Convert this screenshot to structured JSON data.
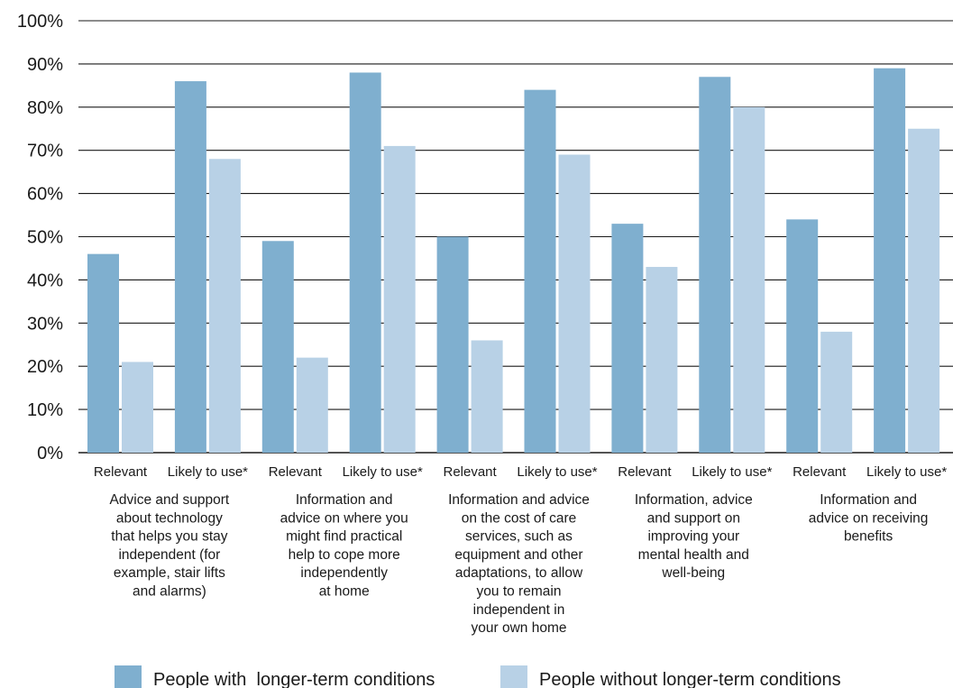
{
  "chart_data": {
    "type": "bar",
    "ylim": [
      0,
      100
    ],
    "yticks": [
      "0%",
      "10%",
      "20%",
      "30%",
      "40%",
      "50%",
      "60%",
      "70%",
      "80%",
      "90%",
      "100%"
    ],
    "grid": true,
    "legend_position": "bottom",
    "groups": [
      {
        "label": [
          "Advice and support",
          "about technology",
          "that helps you stay",
          "independent (for",
          "example, stair lifts",
          "and alarms)"
        ],
        "subcategories": [
          "Relevant",
          "Likely to use*"
        ]
      },
      {
        "label": [
          "Information and",
          "advice on where you",
          "might find practical",
          "help to cope more",
          "independently",
          "at home"
        ],
        "subcategories": [
          "Relevant",
          "Likely to use*"
        ]
      },
      {
        "label": [
          "Information and advice",
          "on the cost of care",
          "services, such as",
          "equipment and other",
          "adaptations, to allow",
          "you to remain",
          "independent in",
          "your own home"
        ],
        "subcategories": [
          "Relevant",
          "Likely to use*"
        ]
      },
      {
        "label": [
          "Information, advice",
          "and support on",
          "improving your",
          "mental health and",
          "well-being"
        ],
        "subcategories": [
          "Relevant",
          "Likely to use*"
        ]
      },
      {
        "label": [
          "Information and",
          "advice on receiving",
          "benefits"
        ],
        "subcategories": [
          "Relevant",
          "Likely to use*"
        ]
      }
    ],
    "series": [
      {
        "name": "People with  longer-term conditions",
        "color": "#7fafcf",
        "values": [
          46,
          86,
          49,
          88,
          50,
          84,
          53,
          87,
          54,
          89
        ]
      },
      {
        "name": "People without longer-term conditions",
        "color": "#b8d1e6",
        "values": [
          21,
          68,
          22,
          71,
          26,
          69,
          43,
          80,
          28,
          75
        ]
      }
    ]
  }
}
